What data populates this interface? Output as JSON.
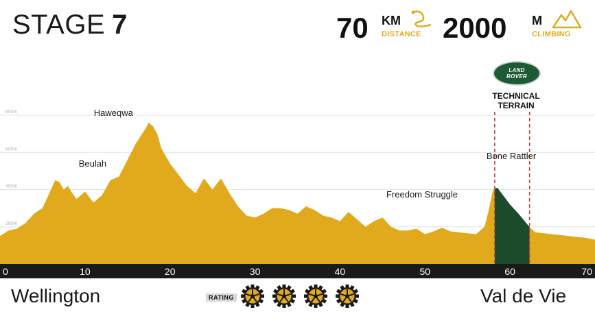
{
  "header": {
    "stage_label": "STAGE",
    "stage_number": "7",
    "distance_value": "70",
    "distance_unit": "KM",
    "distance_label": "DISTANCE",
    "climbing_value": "2000",
    "climbing_unit": "M",
    "climbing_label": "CLIMBING"
  },
  "sponsor": {
    "logo_line1": "LAND",
    "logo_line2": "ROVER",
    "section_label_line1": "TECHNICAL",
    "section_label_line2": "TERRAIN"
  },
  "footer": {
    "start": "Wellington",
    "finish": "Val de Vie",
    "rating_label": "RATING",
    "rating_gears": 4
  },
  "icons": [
    "route-squiggle-icon",
    "mountain-icon",
    "gear-icon"
  ],
  "colors": {
    "profile_fill": "#e0aa1c",
    "technical_fill": "#1c4b2c",
    "axis_bar": "#1a1a1a",
    "marker_dash": "#c0392b",
    "accent": "#e0aa1c"
  },
  "chart_data": {
    "type": "area",
    "x_unit": "km",
    "xlim": [
      0,
      70
    ],
    "x_ticks": [
      0,
      10,
      20,
      30,
      40,
      50,
      60,
      70
    ],
    "ylim": [
      0,
      800
    ],
    "y_ticks": [
      200,
      400,
      600,
      800
    ],
    "y_tick_labels": [
      "200m",
      "400m",
      "600m",
      "800m"
    ],
    "grid": true,
    "x": [
      0,
      1,
      2,
      3,
      4,
      5,
      6,
      6.5,
      7,
      7.5,
      8,
      8.5,
      9,
      10,
      11,
      12,
      13,
      14,
      15,
      16,
      17,
      17.5,
      18,
      18.5,
      19,
      20,
      21,
      22,
      23,
      24,
      25,
      26,
      27,
      28,
      29,
      30,
      31,
      32,
      33,
      34,
      35,
      36,
      37,
      38,
      39,
      40,
      41,
      42,
      43,
      44,
      45,
      46,
      47,
      48,
      49,
      50,
      51,
      52,
      53,
      54,
      55,
      56,
      57,
      57.5,
      58,
      58.5,
      59,
      60,
      61,
      62,
      62.5,
      63,
      64,
      65,
      66,
      67,
      68,
      69,
      70
    ],
    "y": [
      150,
      180,
      190,
      220,
      270,
      300,
      400,
      450,
      440,
      400,
      420,
      380,
      350,
      390,
      330,
      370,
      450,
      470,
      560,
      650,
      720,
      760,
      740,
      700,
      620,
      540,
      480,
      420,
      380,
      460,
      400,
      460,
      380,
      310,
      260,
      250,
      270,
      300,
      300,
      290,
      270,
      310,
      290,
      260,
      250,
      230,
      280,
      240,
      200,
      230,
      250,
      200,
      180,
      180,
      190,
      160,
      175,
      195,
      175,
      170,
      165,
      160,
      200,
      290,
      400,
      410,
      380,
      320,
      270,
      215,
      190,
      170,
      165,
      160,
      155,
      150,
      145,
      140,
      130
    ],
    "technical_section": [
      58.2,
      62.3
    ],
    "annotations": [
      {
        "text": "Haweqwa",
        "x": 17.5,
        "y": 760
      },
      {
        "text": "Beulah",
        "x": 7,
        "y": 450
      },
      {
        "text": "Freedom Struggle",
        "x": 57,
        "y": 410
      },
      {
        "text": "Bone Rattler",
        "x": 62,
        "y": 400
      }
    ]
  }
}
